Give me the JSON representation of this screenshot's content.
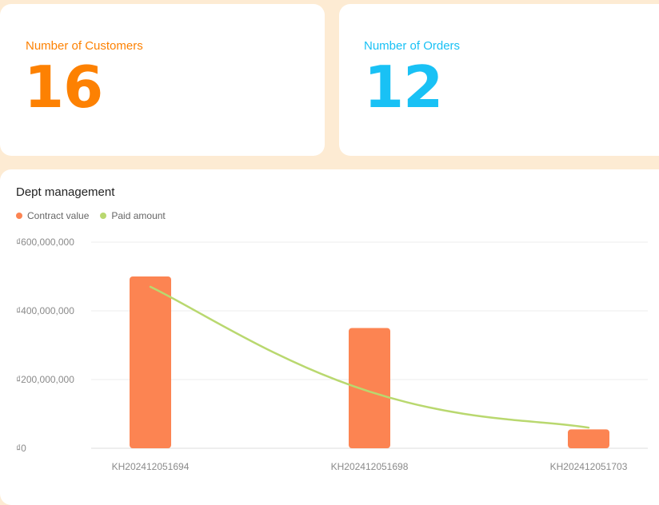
{
  "stats": {
    "customers": {
      "label": "Number of Customers",
      "value": "16",
      "color": "#fd8102"
    },
    "orders": {
      "label": "Number of Orders",
      "value": "12",
      "color": "#19c1f5"
    }
  },
  "chart": {
    "title": "Dept management",
    "legend": [
      {
        "label": "Contract value",
        "color": "#fc8452"
      },
      {
        "label": "Paid amount",
        "color": "#b9d86f"
      }
    ]
  },
  "chart_data": {
    "type": "bar",
    "title": "Dept management",
    "categories": [
      "KH202412051694",
      "KH202412051698",
      "KH202412051703"
    ],
    "series": [
      {
        "name": "Contract value",
        "type": "bar",
        "color": "#fc8452",
        "values": [
          500000000,
          350000000,
          55000000
        ]
      },
      {
        "name": "Paid amount",
        "type": "line",
        "smooth": true,
        "color": "#b9d86f",
        "values": [
          470000000,
          165000000,
          60000000
        ]
      }
    ],
    "ylim": [
      0,
      600000000
    ],
    "yticks": [
      "₫0",
      "₫200,000,000",
      "₫400,000,000",
      "₫600,000,000"
    ],
    "grid": true,
    "legend_position": "top-left"
  }
}
